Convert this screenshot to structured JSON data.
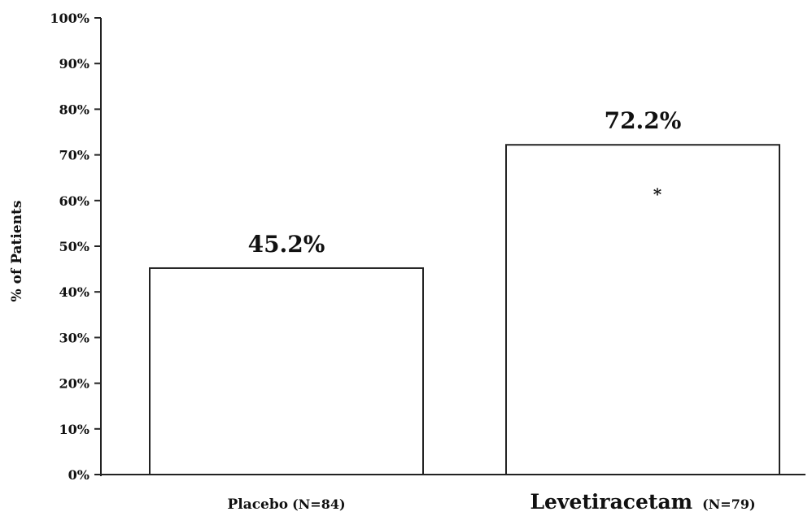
{
  "chart_data": {
    "type": "bar",
    "ylabel": "% of Patients",
    "ylim": [
      0,
      100
    ],
    "yticks": [
      "0%",
      "10%",
      "20%",
      "30%",
      "40%",
      "50%",
      "60%",
      "70%",
      "80%",
      "90%",
      "100%"
    ],
    "categories": [
      {
        "label": "Placebo",
        "n_label": "(N=84)"
      },
      {
        "label": "Levetiracetam",
        "n_label": "(N=79)"
      }
    ],
    "values": [
      45.2,
      72.2
    ],
    "data_labels": [
      "45.2%",
      "72.2%"
    ],
    "annotations": [
      {
        "category_index": 1,
        "text": "*"
      }
    ],
    "bar_fill": "#ffffff",
    "bar_stroke": "#222222",
    "grid": false,
    "legend": "none"
  }
}
